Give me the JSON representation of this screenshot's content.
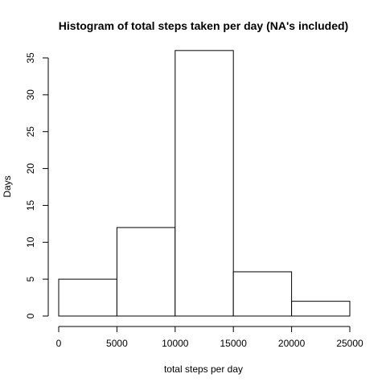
{
  "chart_data": {
    "type": "bar",
    "title": "Histogram of total steps taken per day (NA's included)",
    "xlabel": "total steps per day",
    "ylabel": "Days",
    "bins": [
      {
        "from": 0,
        "to": 5000,
        "count": 5
      },
      {
        "from": 5000,
        "to": 10000,
        "count": 12
      },
      {
        "from": 10000,
        "to": 15000,
        "count": 36
      },
      {
        "from": 15000,
        "to": 20000,
        "count": 6
      },
      {
        "from": 20000,
        "to": 25000,
        "count": 2
      }
    ],
    "xlim": [
      0,
      25000
    ],
    "ylim": [
      0,
      35
    ],
    "x_ticks": [
      "0",
      "5000",
      "10000",
      "15000",
      "20000",
      "25000"
    ],
    "y_ticks": [
      "0",
      "5",
      "10",
      "15",
      "20",
      "25",
      "30",
      "35"
    ],
    "grid": false,
    "bar_fill": "#ffffff",
    "bar_stroke": "#000000"
  }
}
